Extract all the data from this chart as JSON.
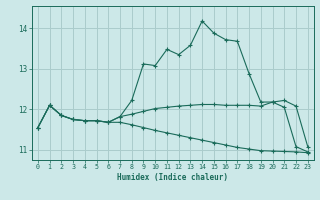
{
  "xlabel": "Humidex (Indice chaleur)",
  "bg_color": "#cce8e8",
  "grid_color": "#aacccc",
  "line_color": "#1a6b5a",
  "xlim": [
    -0.5,
    23.5
  ],
  "ylim": [
    10.75,
    14.55
  ],
  "yticks": [
    11,
    12,
    13,
    14
  ],
  "xticks": [
    0,
    1,
    2,
    3,
    4,
    5,
    6,
    7,
    8,
    9,
    10,
    11,
    12,
    13,
    14,
    15,
    16,
    17,
    18,
    19,
    20,
    21,
    22,
    23
  ],
  "line1_x": [
    0,
    1,
    2,
    3,
    4,
    5,
    6,
    7,
    8,
    9,
    10,
    11,
    12,
    13,
    14,
    15,
    16,
    17,
    18,
    19,
    20,
    21,
    22,
    23
  ],
  "line1_y": [
    11.55,
    12.1,
    11.85,
    11.75,
    11.72,
    11.72,
    11.68,
    11.82,
    12.22,
    13.12,
    13.08,
    13.48,
    13.35,
    13.58,
    14.18,
    13.88,
    13.72,
    13.68,
    12.88,
    12.18,
    12.18,
    12.05,
    11.08,
    10.95
  ],
  "line2_x": [
    0,
    1,
    2,
    3,
    4,
    5,
    6,
    7,
    8,
    9,
    10,
    11,
    12,
    13,
    14,
    15,
    16,
    17,
    18,
    19,
    20,
    21,
    22,
    23
  ],
  "line2_y": [
    11.55,
    12.1,
    11.85,
    11.75,
    11.72,
    11.72,
    11.68,
    11.82,
    11.88,
    11.95,
    12.02,
    12.05,
    12.08,
    12.1,
    12.12,
    12.12,
    12.1,
    12.1,
    12.1,
    12.08,
    12.18,
    12.22,
    12.08,
    11.08
  ],
  "line3_x": [
    0,
    1,
    2,
    3,
    4,
    5,
    6,
    7,
    8,
    9,
    10,
    11,
    12,
    13,
    14,
    15,
    16,
    17,
    18,
    19,
    20,
    21,
    22,
    23
  ],
  "line3_y": [
    11.55,
    12.1,
    11.85,
    11.75,
    11.72,
    11.72,
    11.68,
    11.68,
    11.62,
    11.55,
    11.48,
    11.42,
    11.36,
    11.3,
    11.24,
    11.18,
    11.12,
    11.06,
    11.02,
    10.98,
    10.97,
    10.96,
    10.95,
    10.93
  ]
}
